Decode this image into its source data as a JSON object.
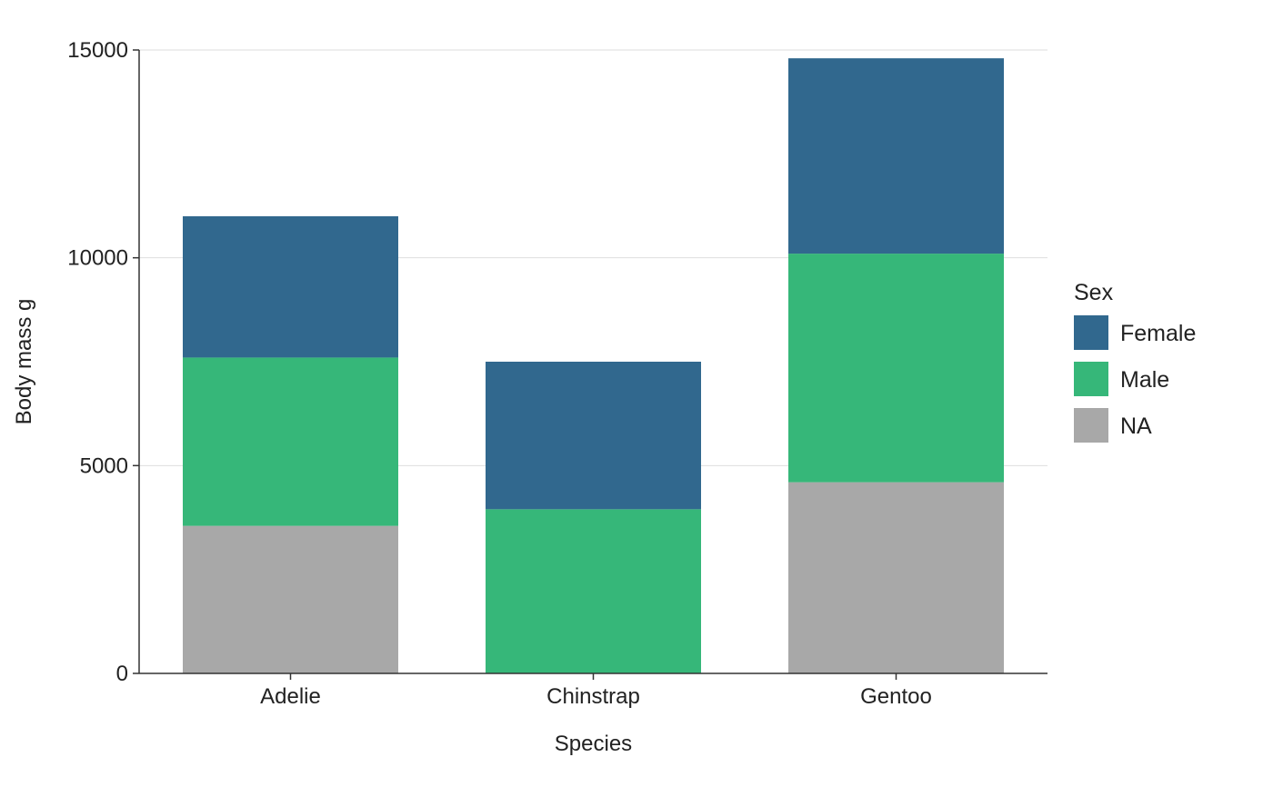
{
  "chart_data": {
    "type": "bar",
    "stacked": true,
    "categories": [
      "Adelie",
      "Chinstrap",
      "Gentoo"
    ],
    "series": [
      {
        "name": "NA",
        "values": [
          3550,
          0,
          4600
        ],
        "color": "#a8a8a8"
      },
      {
        "name": "Male",
        "values": [
          4050,
          3950,
          5500
        ],
        "color": "#36b779"
      },
      {
        "name": "Female",
        "values": [
          3400,
          3550,
          4700
        ],
        "color": "#31688e"
      }
    ],
    "xlabel": "Species",
    "ylabel": "Body mass g",
    "ylim": [
      0,
      15000
    ],
    "yticks": [
      0,
      5000,
      10000,
      15000
    ],
    "ytick_labels": [
      "0",
      "5000",
      "10000",
      "15000"
    ],
    "grid": "horizontal",
    "legend": {
      "title": "Sex",
      "placement": "right",
      "entries": [
        {
          "label": "Female",
          "color": "#31688e"
        },
        {
          "label": "Male",
          "color": "#36b779"
        },
        {
          "label": "NA",
          "color": "#a8a8a8"
        }
      ]
    }
  }
}
